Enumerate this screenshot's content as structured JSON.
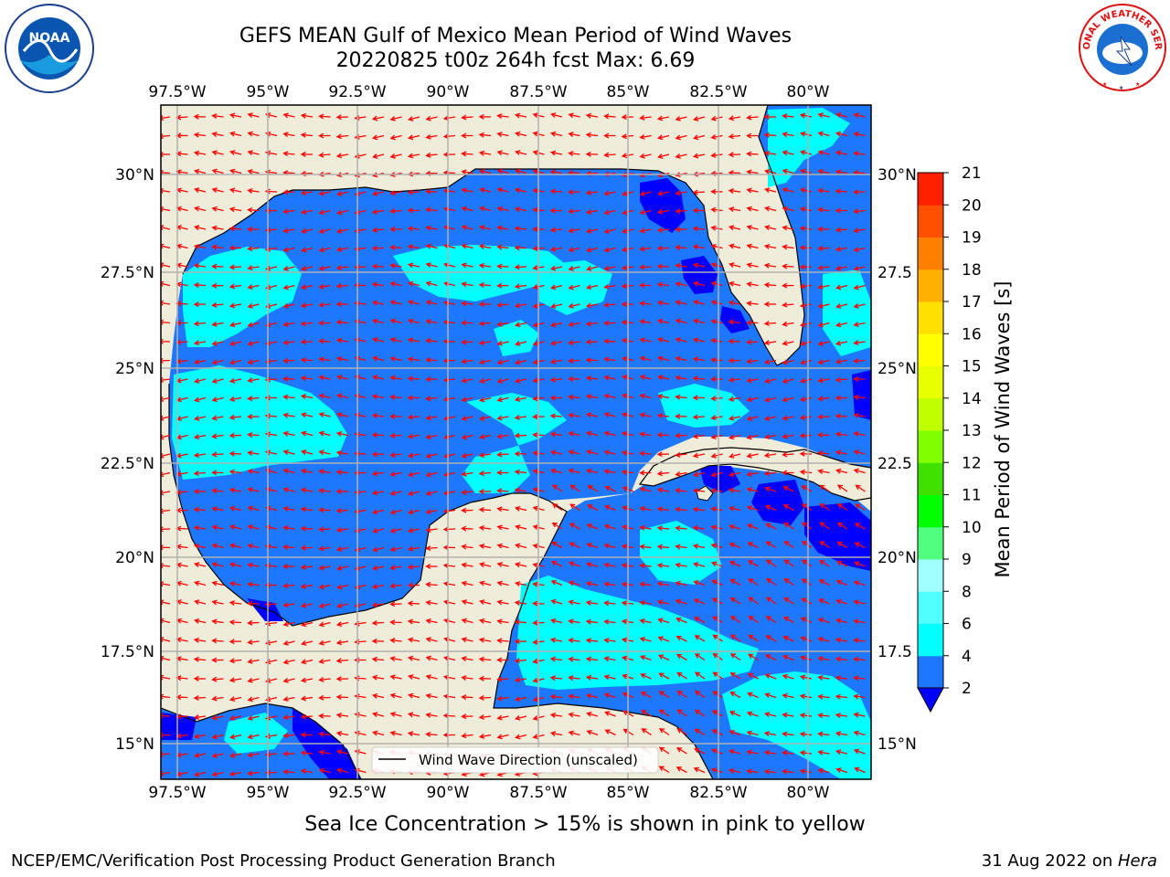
{
  "title": {
    "line1": "GEFS MEAN Gulf of Mexico Mean Period of Wind Waves",
    "line2": "20220825 t00z 264h fcst   Max: 6.69"
  },
  "map": {
    "lon_ticks": [
      "97.5°W",
      "95°W",
      "92.5°W",
      "90°W",
      "87.5°W",
      "85°W",
      "82.5°W",
      "80°W"
    ],
    "lat_ticks_left": [
      "30°N",
      "27.5°N",
      "25°N",
      "22.5°N",
      "20°N",
      "17.5°N",
      "15°N"
    ],
    "lat_ticks_right": [
      "30°N",
      "27.5",
      "25°N",
      "22.5",
      "20°N",
      "17.5",
      "15°N"
    ],
    "legend_text": "Wind Wave Direction (unscaled)",
    "colors": {
      "land": "#efedd9",
      "period_2_4": "#1e78ff",
      "period_4_6": "#00ffff",
      "below_2": "#0000ff",
      "arrows": "#ff0000",
      "grid": "#b0b0b0"
    }
  },
  "colorbar": {
    "label": "Mean Period of Wind Waves [s]",
    "ticks": [
      "2",
      "4",
      "6",
      "8",
      "9",
      "10",
      "11",
      "12",
      "13",
      "14",
      "15",
      "16",
      "17",
      "18",
      "19",
      "20",
      "21"
    ],
    "colors": [
      "#1e78ff",
      "#00ffff",
      "#50ffff",
      "#a0ffff",
      "#50ff80",
      "#00ff00",
      "#40e000",
      "#80ff00",
      "#c0ff00",
      "#e8ff00",
      "#ffff00",
      "#ffe000",
      "#ffb000",
      "#ff8000",
      "#ff5000",
      "#ff2000",
      "#ff0000"
    ],
    "under_color": "#0000ff"
  },
  "subfooter": "Sea Ice Concentration > 15% is shown in pink to yellow",
  "footer": {
    "left": "NCEP/EMC/Verification Post Processing Product Generation Branch",
    "right_date": "31 Aug 2022 on ",
    "right_host": "Hera"
  },
  "logos": {
    "noaa_text": "NOAA",
    "nws_text": "NATIONAL WEATHER SERVICE"
  }
}
